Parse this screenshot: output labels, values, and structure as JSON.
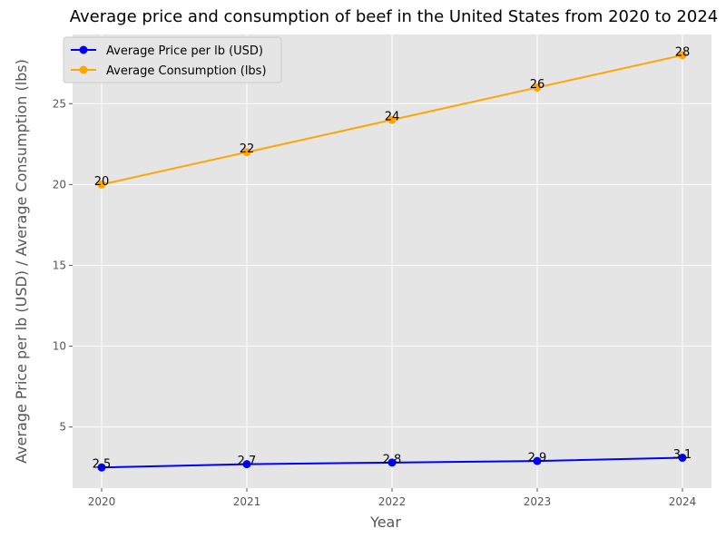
{
  "chart_data": {
    "type": "line",
    "title": "Average price and consumption of beef in the United States from 2020 to 2024",
    "xlabel": "Year",
    "ylabel": "Average Price per lb (USD) / Average Consumption (lbs)",
    "x": [
      "2020",
      "2021",
      "2022",
      "2023",
      "2024"
    ],
    "xlim": [
      2019.8,
      2024.2
    ],
    "ylim": [
      1.22,
      29.28
    ],
    "yticks": [
      "5",
      "10",
      "15",
      "20",
      "25"
    ],
    "grid": true,
    "legend_position": "top-left",
    "series": [
      {
        "name": "Average Price per lb (USD)",
        "values": [
          2.5,
          2.7,
          2.8,
          2.9,
          3.1
        ],
        "labels": [
          "2.5",
          "2.7",
          "2.8",
          "2.9",
          "3.1"
        ],
        "color": "#0000ff"
      },
      {
        "name": "Average Consumption (lbs)",
        "values": [
          20,
          22,
          24,
          26,
          28
        ],
        "labels": [
          "20",
          "22",
          "24",
          "26",
          "28"
        ],
        "color": "#ffa500"
      }
    ]
  },
  "colors": {
    "plot_background": "#e5e5e5",
    "grid": "#ffffff",
    "tick_text": "#555555",
    "label_text": "#555555"
  }
}
